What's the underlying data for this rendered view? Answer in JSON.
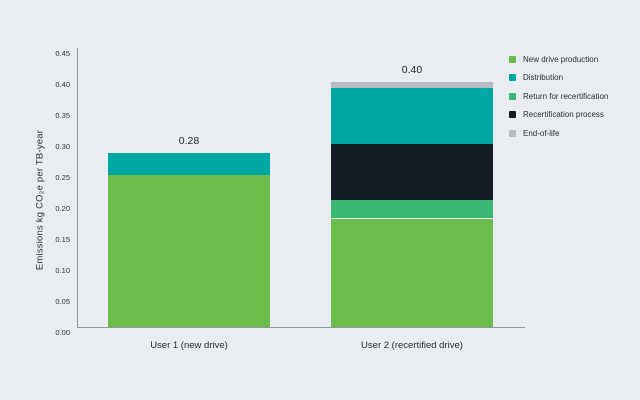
{
  "colors": {
    "background": "#e9edf1",
    "axis": "#8f989f",
    "text": "#252c33"
  },
  "chart_data": {
    "type": "bar",
    "subtype": "stacked-vertical",
    "title": "",
    "ylabel": "Emissions kg CO₂e per TB-year",
    "xlabel": "",
    "ylim": [
      0,
      0.45
    ],
    "ytick_step": 0.05,
    "ytick_labels": [
      "0.00",
      "0.05",
      "0.10",
      "0.15",
      "0.20",
      "0.25",
      "0.30",
      "0.35",
      "0.40",
      "0.45"
    ],
    "grid": false,
    "categories": [
      "User 1 (new drive)",
      "User 2 (recertified drive)"
    ],
    "bar_total_labels": [
      "0.28",
      "0.40"
    ],
    "series": [
      {
        "name": "New drive production",
        "color": "#6cbc4c",
        "values": [
          0.245,
          0.175
        ]
      },
      {
        "name": "Return for recertification",
        "color": "#3ab873",
        "values": [
          0.0,
          0.03
        ]
      },
      {
        "name": "Recertification process",
        "color": "#131b24",
        "values": [
          0.0,
          0.09
        ]
      },
      {
        "name": "Distribution",
        "color": "#00a7a3",
        "values": [
          0.035,
          0.09
        ]
      },
      {
        "name": "End-of-life",
        "color": "#b4bcc2",
        "values": [
          0.0,
          0.01
        ]
      }
    ],
    "legend": {
      "position": "top-right",
      "items": [
        "New drive production",
        "Distribution",
        "Return for recertification",
        "Recertification process",
        "End-of-life"
      ]
    }
  }
}
